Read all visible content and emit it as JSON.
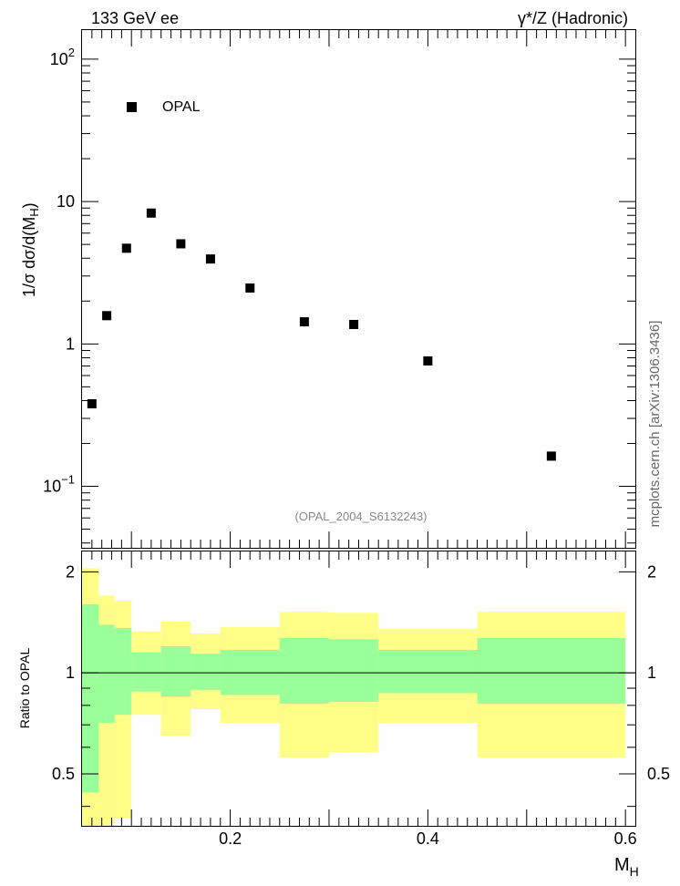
{
  "header": {
    "left": "133 GeV ee",
    "right": "γ*/Z (Hadronic)"
  },
  "side_label": "mcplots.cern.ch [arXiv:1306.3436]",
  "analysis_label": "(OPAL_2004_S6132243)",
  "chart_data": [
    {
      "type": "scatter",
      "panel": "main",
      "ylabel_parts": {
        "main": "1/σ dσ/d(M",
        "sub": "H",
        "close": ")"
      },
      "xlim": [
        0.05,
        0.61
      ],
      "ylim": [
        0.037,
        160
      ],
      "yscale": "log",
      "y_ticks": [
        {
          "value": 0.1,
          "mant": "10",
          "exp": "−1"
        },
        {
          "value": 1,
          "mant": "1",
          "exp": ""
        },
        {
          "value": 10,
          "mant": "10",
          "exp": ""
        },
        {
          "value": 100,
          "mant": "10",
          "exp": "2"
        }
      ],
      "legend": {
        "label": "OPAL",
        "position": "top-left",
        "color": "#000000"
      },
      "series": [
        {
          "name": "OPAL",
          "color": "#000000",
          "marker": "square",
          "x": [
            0.06,
            0.075,
            0.095,
            0.12,
            0.15,
            0.18,
            0.22,
            0.275,
            0.325,
            0.4,
            0.525
          ],
          "y": [
            0.38,
            1.58,
            4.7,
            8.3,
            5.05,
            3.95,
            2.47,
            1.43,
            1.37,
            0.76,
            0.163
          ]
        }
      ]
    },
    {
      "type": "area",
      "panel": "ratio",
      "ylabel": "Ratio to OPAL",
      "xlabel": "M",
      "xlabel_sub": "H",
      "xlim": [
        0.05,
        0.61
      ],
      "ylim": [
        0.35,
        2.3
      ],
      "x_ticks": [
        "0.2",
        "0.4",
        "0.6"
      ],
      "y_ticks": [
        "0.5",
        "1",
        "2"
      ],
      "reference_line": 1,
      "bins": [
        0.05,
        0.067,
        0.083,
        0.1,
        0.13,
        0.16,
        0.19,
        0.25,
        0.3,
        0.35,
        0.45,
        0.6
      ],
      "bands": [
        {
          "name": "stat",
          "color": "#99ff99",
          "low": [
            0.44,
            0.71,
            0.75,
            0.88,
            0.85,
            0.89,
            0.86,
            0.81,
            0.82,
            0.87,
            0.81
          ],
          "high": [
            1.6,
            1.39,
            1.36,
            1.15,
            1.2,
            1.14,
            1.17,
            1.27,
            1.26,
            1.17,
            1.27
          ]
        },
        {
          "name": "total",
          "color": "#ffff88",
          "low": [
            0.35,
            0.35,
            0.37,
            0.75,
            0.65,
            0.78,
            0.71,
            0.56,
            0.58,
            0.71,
            0.56
          ],
          "high": [
            2.05,
            1.7,
            1.64,
            1.33,
            1.42,
            1.31,
            1.37,
            1.52,
            1.51,
            1.35,
            1.52
          ]
        }
      ]
    }
  ]
}
